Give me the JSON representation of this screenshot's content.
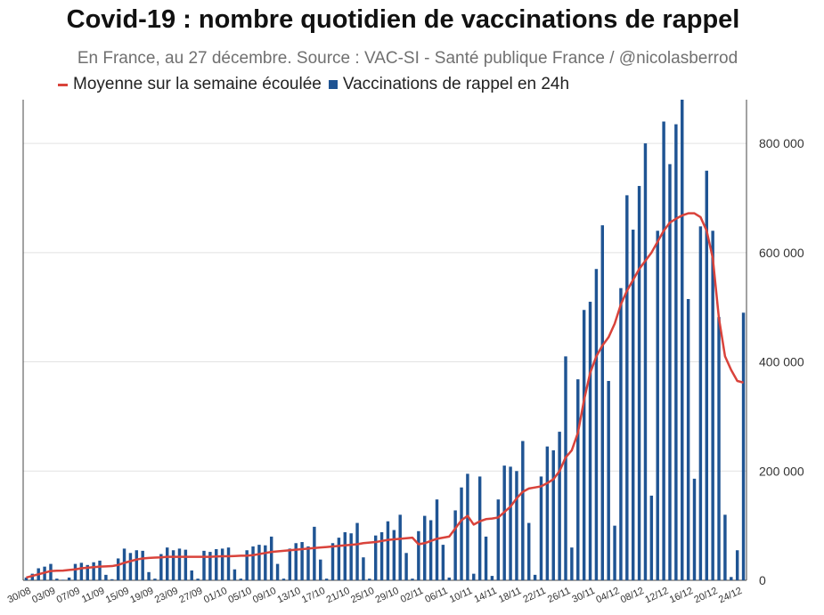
{
  "colors": {
    "bar": "#1f5493",
    "line": "#d9433b",
    "grid": "#e2e2e2",
    "axis": "#444444"
  },
  "chart_data": {
    "type": "bar",
    "title": "Covid-19 : nombre quotidien de vaccinations de rappel",
    "subtitle": "En France, au 27 décembre. Source : VAC-SI - Santé publique France / @nicolasberrod",
    "legend": {
      "placement": "top-left",
      "entries": [
        "Moyenne sur la semaine écoulée",
        "Vaccinations de rappel en 24h"
      ]
    },
    "ylim": [
      0,
      880000
    ],
    "y_ticks": [
      0,
      200000,
      400000,
      600000,
      800000
    ],
    "y_tick_labels": [
      "0",
      "200 000",
      "400 000",
      "600 000",
      "800 000"
    ],
    "y_axis_side": "right",
    "grid": true,
    "x_tick_labels": [
      "30/08",
      "03/09",
      "07/09",
      "11/09",
      "15/09",
      "19/09",
      "23/09",
      "27/09",
      "01/10",
      "05/10",
      "09/10",
      "13/10",
      "17/10",
      "21/10",
      "25/10",
      "29/10",
      "02/11",
      "06/11",
      "10/11",
      "14/11",
      "18/11",
      "22/11",
      "26/11",
      "30/11",
      "04/12",
      "08/12",
      "12/12",
      "16/12",
      "20/12",
      "24/12"
    ],
    "x_tick_every": 4,
    "series": [
      {
        "name": "Vaccinations de rappel en 24h",
        "type": "bar",
        "values": [
          5000,
          12000,
          22000,
          25000,
          30000,
          3000,
          1000,
          5000,
          30000,
          32000,
          28000,
          33000,
          36000,
          10000,
          2000,
          40000,
          58000,
          50000,
          55000,
          54000,
          15000,
          3000,
          48000,
          60000,
          55000,
          58000,
          56000,
          18000,
          3000,
          54000,
          52000,
          57000,
          58000,
          60000,
          20000,
          3000,
          55000,
          62000,
          65000,
          64000,
          80000,
          30000,
          3000,
          58000,
          68000,
          70000,
          62000,
          98000,
          38000,
          3000,
          68000,
          78000,
          88000,
          86000,
          105000,
          42000,
          3000,
          82000,
          88000,
          108000,
          92000,
          120000,
          50000,
          3000,
          90000,
          118000,
          110000,
          148000,
          65000,
          5000,
          128000,
          170000,
          195000,
          12000,
          190000,
          80000,
          8000,
          148000,
          210000,
          208000,
          200000,
          255000,
          105000,
          10000,
          190000,
          245000,
          238000,
          272000,
          410000,
          60000,
          368000,
          495000,
          510000,
          570000,
          650000,
          365000,
          100000,
          535000,
          705000,
          642000,
          722000,
          800000,
          155000,
          640000,
          840000,
          762000,
          835000,
          880000,
          515000,
          186000,
          648000,
          750000,
          640000,
          482000,
          120000,
          6000,
          55000,
          490000
        ]
      },
      {
        "name": "Moyenne sur la semaine écoulée",
        "type": "line",
        "values": [
          5000,
          8000,
          11000,
          14000,
          17000,
          17500,
          17800,
          19000,
          20000,
          22000,
          23000,
          24000,
          25000,
          25500,
          26000,
          28000,
          32000,
          35000,
          38000,
          40000,
          41000,
          41500,
          42000,
          43000,
          43000,
          43000,
          43000,
          43000,
          43000,
          43000,
          43000,
          43500,
          44000,
          44000,
          44500,
          45000,
          45000,
          46000,
          48000,
          50000,
          52000,
          53000,
          54000,
          55000,
          56000,
          57000,
          58000,
          59000,
          60000,
          61000,
          62000,
          63000,
          64000,
          65000,
          66000,
          68000,
          69000,
          70000,
          72000,
          74000,
          75000,
          76000,
          77000,
          78000,
          66000,
          68000,
          72000,
          76000,
          78000,
          80000,
          95000,
          110000,
          118000,
          102000,
          108000,
          112000,
          113000,
          115000,
          125000,
          135000,
          150000,
          162000,
          168000,
          170000,
          172000,
          178000,
          185000,
          200000,
          225000,
          238000,
          270000,
          330000,
          380000,
          410000,
          430000,
          445000,
          470000,
          505000,
          530000,
          550000,
          570000,
          585000,
          600000,
          620000,
          640000,
          655000,
          662000,
          668000,
          672000,
          672000,
          665000,
          640000,
          590000,
          480000,
          410000,
          385000,
          365000,
          362000
        ]
      }
    ]
  }
}
